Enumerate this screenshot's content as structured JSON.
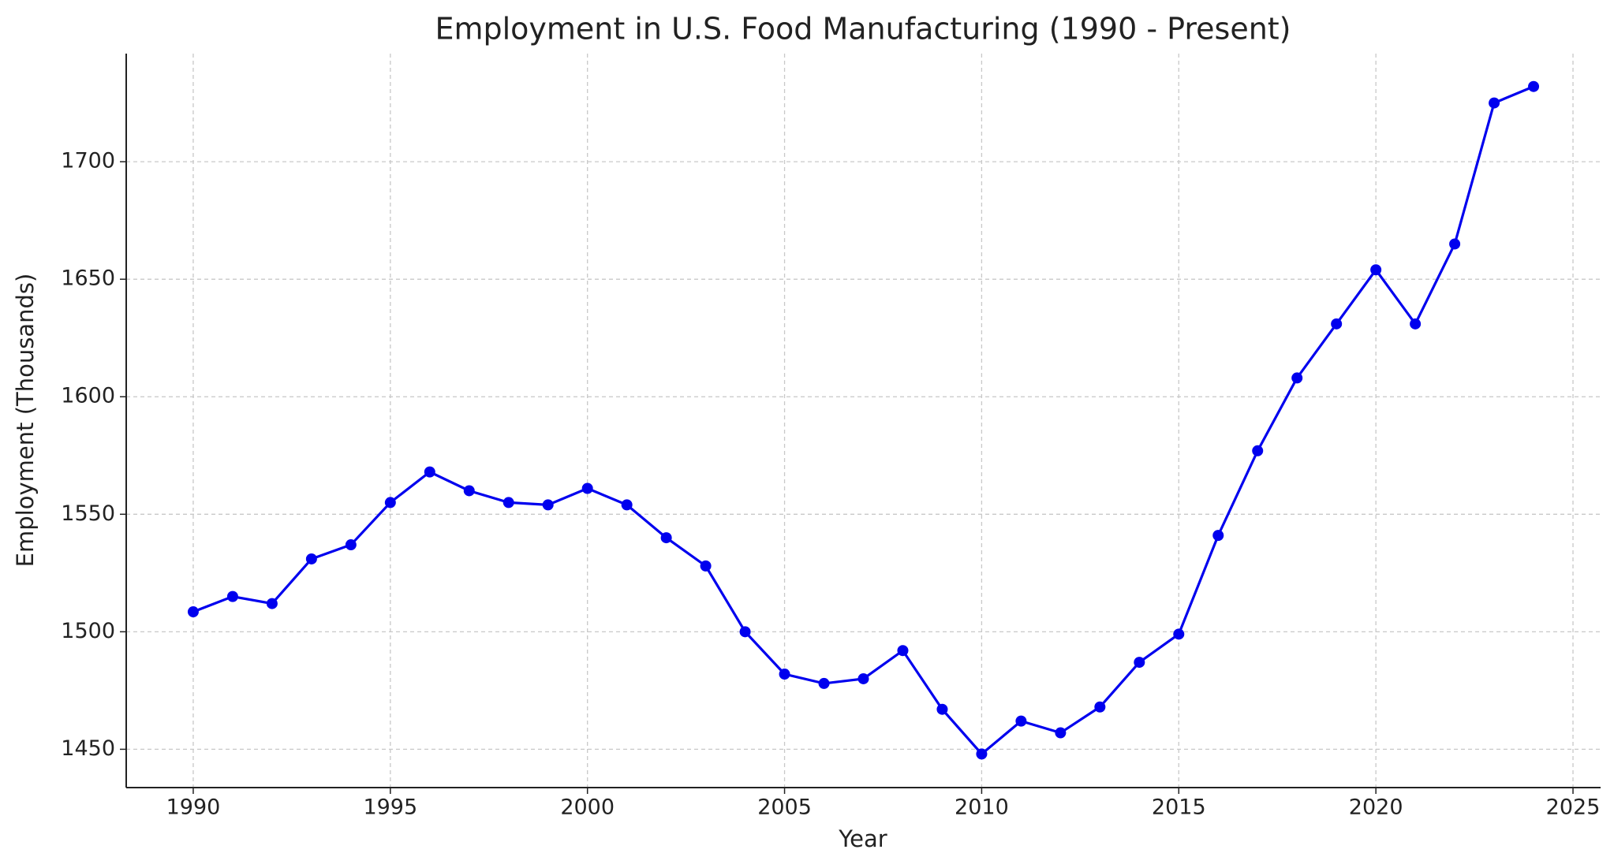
{
  "chart_data": {
    "type": "line",
    "title": "Employment in U.S. Food Manufacturing (1990 - Present)",
    "x_label": "Year",
    "y_label": "Employment (Thousands)",
    "x": [
      1990,
      1991,
      1992,
      1993,
      1994,
      1995,
      1996,
      1997,
      1998,
      1999,
      2000,
      2001,
      2002,
      2003,
      2004,
      2005,
      2006,
      2007,
      2008,
      2009,
      2010,
      2011,
      2012,
      2013,
      2014,
      2015,
      2016,
      2017,
      2018,
      2019,
      2020,
      2021,
      2022,
      2023,
      2024
    ],
    "series": [
      {
        "name": "Employment",
        "color": "#0000ee",
        "values": [
          1508.5,
          1515,
          1512,
          1531,
          1537,
          1555,
          1568,
          1560,
          1555,
          1554,
          1561,
          1554,
          1540,
          1528,
          1500,
          1482,
          1478,
          1480,
          1492,
          1467,
          1448,
          1462,
          1457,
          1468,
          1487,
          1499,
          1541,
          1577,
          1608,
          1631,
          1654,
          1631,
          1665,
          1725,
          1732
        ]
      }
    ],
    "xlim": [
      1988.3,
      2025.7
    ],
    "xticks": [
      1990,
      1995,
      2000,
      2005,
      2010,
      2015,
      2020,
      2025
    ],
    "ylim": [
      1433.7,
      1746
    ],
    "yticks": [
      1450,
      1500,
      1550,
      1600,
      1650,
      1700
    ],
    "grid": true
  }
}
